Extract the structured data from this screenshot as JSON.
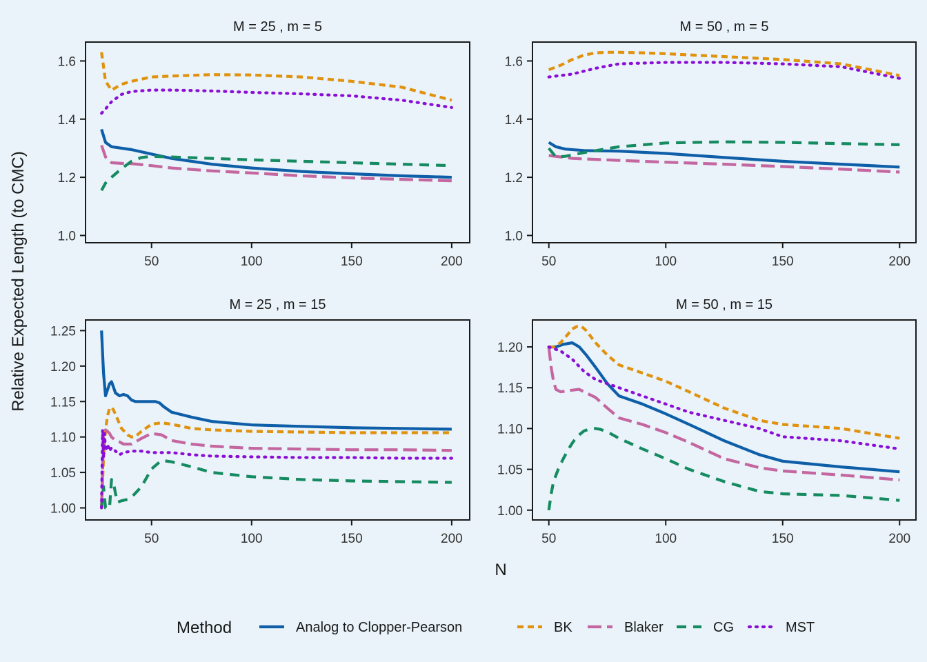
{
  "chart_data": {
    "type": "line",
    "ylabel": "Relative Expected Length (to CMC)",
    "xlabel": "N",
    "legend": {
      "title": "Method",
      "placement": "bottom",
      "entries": [
        {
          "name": "Analog to Clopper-Pearson",
          "color": "#0e5ea8",
          "dash": "solid"
        },
        {
          "name": "BK",
          "color": "#e0920f",
          "dash": "short-dash"
        },
        {
          "name": "Blaker",
          "color": "#c466a0",
          "dash": "long-dash"
        },
        {
          "name": "CG",
          "color": "#168a60",
          "dash": "dash"
        },
        {
          "name": "MST",
          "color": "#8a0ed6",
          "dash": "dotted"
        }
      ]
    },
    "panels": [
      {
        "title": "M = 25 , m = 5",
        "xlim": [
          17,
          209
        ],
        "ylim": [
          0.975,
          1.665
        ],
        "xticks": [
          50,
          100,
          150,
          200
        ],
        "yticks": [
          1.0,
          1.2,
          1.4,
          1.6
        ],
        "ytick_labels": [
          "1.0",
          "1.2",
          "1.4",
          "1.6"
        ],
        "series": [
          {
            "name": "Analog to Clopper-Pearson",
            "x": [
              25,
              27,
              30,
              40,
              50,
              60,
              80,
              100,
              125,
              150,
              175,
              200
            ],
            "y": [
              1.365,
              1.32,
              1.305,
              1.295,
              1.28,
              1.265,
              1.245,
              1.232,
              1.22,
              1.212,
              1.205,
              1.2
            ]
          },
          {
            "name": "BK",
            "x": [
              25,
              27,
              30,
              35,
              40,
              50,
              60,
              80,
              100,
              125,
              150,
              175,
              200
            ],
            "y": [
              1.63,
              1.53,
              1.5,
              1.52,
              1.53,
              1.545,
              1.548,
              1.553,
              1.552,
              1.545,
              1.53,
              1.51,
              1.465
            ]
          },
          {
            "name": "Blaker",
            "x": [
              25,
              27,
              30,
              35,
              40,
              50,
              60,
              80,
              100,
              125,
              150,
              175,
              200
            ],
            "y": [
              1.31,
              1.27,
              1.25,
              1.248,
              1.247,
              1.24,
              1.232,
              1.222,
              1.215,
              1.205,
              1.198,
              1.193,
              1.188
            ]
          },
          {
            "name": "CG",
            "x": [
              25,
              27,
              30,
              35,
              40,
              45,
              50,
              60,
              80,
              100,
              125,
              150,
              175,
              200
            ],
            "y": [
              1.155,
              1.18,
              1.2,
              1.23,
              1.255,
              1.268,
              1.272,
              1.27,
              1.265,
              1.26,
              1.255,
              1.25,
              1.245,
              1.24
            ]
          },
          {
            "name": "MST",
            "x": [
              25,
              27,
              30,
              35,
              40,
              50,
              60,
              80,
              100,
              125,
              150,
              175,
              200
            ],
            "y": [
              1.42,
              1.435,
              1.46,
              1.485,
              1.495,
              1.5,
              1.5,
              1.497,
              1.492,
              1.487,
              1.48,
              1.465,
              1.44
            ]
          }
        ]
      },
      {
        "title": "M = 50 , m = 5",
        "xlim": [
          43,
          207
        ],
        "ylim": [
          0.975,
          1.665
        ],
        "xticks": [
          50,
          100,
          150,
          200
        ],
        "yticks": [
          1.0,
          1.2,
          1.4,
          1.6
        ],
        "ytick_labels": [
          "1.0",
          "1.2",
          "1.4",
          "1.6"
        ],
        "series": [
          {
            "name": "Analog to Clopper-Pearson",
            "x": [
              50,
              53,
              57,
              65,
              80,
              100,
              125,
              150,
              175,
              200
            ],
            "y": [
              1.32,
              1.305,
              1.297,
              1.292,
              1.29,
              1.282,
              1.268,
              1.255,
              1.245,
              1.235
            ]
          },
          {
            "name": "BK",
            "x": [
              50,
              55,
              60,
              65,
              70,
              75,
              80,
              90,
              100,
              125,
              150,
              175,
              200
            ],
            "y": [
              1.57,
              1.585,
              1.605,
              1.62,
              1.628,
              1.63,
              1.63,
              1.628,
              1.625,
              1.615,
              1.605,
              1.59,
              1.55
            ]
          },
          {
            "name": "Blaker",
            "x": [
              50,
              60,
              80,
              100,
              125,
              150,
              175,
              200
            ],
            "y": [
              1.275,
              1.265,
              1.258,
              1.252,
              1.245,
              1.237,
              1.228,
              1.218
            ]
          },
          {
            "name": "CG",
            "x": [
              50,
              53,
              57,
              65,
              80,
              100,
              125,
              150,
              175,
              200
            ],
            "y": [
              1.3,
              1.27,
              1.272,
              1.285,
              1.305,
              1.318,
              1.322,
              1.32,
              1.316,
              1.312
            ]
          },
          {
            "name": "MST",
            "x": [
              50,
              55,
              60,
              70,
              80,
              100,
              125,
              150,
              175,
              200
            ],
            "y": [
              1.545,
              1.55,
              1.555,
              1.575,
              1.59,
              1.595,
              1.595,
              1.59,
              1.58,
              1.54
            ]
          }
        ]
      },
      {
        "title": "M = 25 , m = 15",
        "xlim": [
          17,
          209
        ],
        "ylim": [
          0.983,
          1.265
        ],
        "xticks": [
          50,
          100,
          150,
          200
        ],
        "yticks": [
          1.0,
          1.05,
          1.1,
          1.15,
          1.2,
          1.25
        ],
        "ytick_labels": [
          "1.00",
          "1.05",
          "1.10",
          "1.15",
          "1.20",
          "1.25"
        ],
        "series": [
          {
            "name": "Analog to Clopper-Pearson",
            "x": [
              25,
              26,
              27,
              29,
              30,
              32,
              34,
              36,
              38,
              40,
              42,
              44,
              46,
              48,
              52,
              54,
              56,
              60,
              70,
              80,
              100,
              125,
              150,
              175,
              200
            ],
            "y": [
              1.25,
              1.19,
              1.158,
              1.175,
              1.178,
              1.162,
              1.158,
              1.16,
              1.158,
              1.152,
              1.15,
              1.15,
              1.15,
              1.15,
              1.15,
              1.148,
              1.143,
              1.135,
              1.128,
              1.122,
              1.117,
              1.115,
              1.113,
              1.112,
              1.111
            ]
          },
          {
            "name": "BK",
            "x": [
              25,
              26,
              27,
              28,
              29,
              30,
              31,
              33,
              35,
              38,
              40,
              42,
              45,
              50,
              55,
              60,
              70,
              80,
              100,
              125,
              150,
              175,
              200
            ],
            "y": [
              1.0,
              1.07,
              1.11,
              1.13,
              1.14,
              1.142,
              1.138,
              1.125,
              1.112,
              1.103,
              1.1,
              1.101,
              1.108,
              1.118,
              1.12,
              1.118,
              1.112,
              1.11,
              1.108,
              1.107,
              1.106,
              1.106,
              1.106
            ]
          },
          {
            "name": "Blaker",
            "x": [
              25,
              26,
              27,
              28,
              29,
              30,
              32,
              34,
              36,
              40,
              45,
              50,
              55,
              60,
              70,
              80,
              100,
              125,
              150,
              175,
              200
            ],
            "y": [
              1.0,
              1.1,
              1.11,
              1.108,
              1.105,
              1.1,
              1.095,
              1.093,
              1.09,
              1.09,
              1.098,
              1.105,
              1.103,
              1.095,
              1.09,
              1.087,
              1.084,
              1.083,
              1.082,
              1.082,
              1.081
            ]
          },
          {
            "name": "CG",
            "x": [
              25,
              26,
              27,
              28,
              29,
              30,
              31,
              32,
              33,
              35,
              38,
              40,
              45,
              50,
              55,
              60,
              70,
              80,
              100,
              125,
              150,
              175,
              200
            ],
            "y": [
              1.0,
              1.03,
              1.0,
              1.0,
              1.0,
              1.04,
              1.035,
              1.02,
              1.008,
              1.01,
              1.012,
              1.015,
              1.03,
              1.055,
              1.067,
              1.065,
              1.058,
              1.05,
              1.044,
              1.04,
              1.038,
              1.037,
              1.036
            ]
          },
          {
            "name": "MST",
            "x": [
              25,
              25.5,
              26,
              26.5,
              27,
              28,
              29,
              30,
              32,
              34,
              36,
              40,
              45,
              50,
              60,
              70,
              80,
              100,
              125,
              150,
              175,
              200
            ],
            "y": [
              1.0,
              1.11,
              1.07,
              1.105,
              1.08,
              1.09,
              1.08,
              1.085,
              1.08,
              1.075,
              1.078,
              1.08,
              1.08,
              1.078,
              1.078,
              1.075,
              1.073,
              1.072,
              1.071,
              1.071,
              1.07,
              1.07
            ]
          }
        ]
      },
      {
        "title": "M = 50 , m = 15",
        "xlim": [
          43,
          207
        ],
        "ylim": [
          0.988,
          1.233
        ],
        "xticks": [
          50,
          100,
          150,
          200
        ],
        "yticks": [
          1.0,
          1.05,
          1.1,
          1.15,
          1.2
        ],
        "ytick_labels": [
          "1.00",
          "1.05",
          "1.10",
          "1.15",
          "1.20"
        ],
        "series": [
          {
            "name": "Analog to Clopper-Pearson",
            "x": [
              50,
              53,
              56,
              60,
              63,
              66,
              70,
              75,
              80,
              90,
              100,
              110,
              125,
              140,
              150,
              175,
              200
            ],
            "y": [
              1.2,
              1.2,
              1.203,
              1.205,
              1.2,
              1.19,
              1.175,
              1.155,
              1.14,
              1.13,
              1.118,
              1.105,
              1.085,
              1.068,
              1.06,
              1.053,
              1.047
            ]
          },
          {
            "name": "BK",
            "x": [
              50,
              52,
              55,
              58,
              60,
              62,
              64,
              66,
              70,
              75,
              80,
              90,
              100,
              110,
              125,
              140,
              150,
              175,
              200
            ],
            "y": [
              1.2,
              1.2,
              1.205,
              1.215,
              1.222,
              1.225,
              1.225,
              1.22,
              1.205,
              1.19,
              1.178,
              1.168,
              1.158,
              1.145,
              1.125,
              1.11,
              1.105,
              1.1,
              1.088
            ]
          },
          {
            "name": "Blaker",
            "x": [
              50,
              51,
              52,
              53,
              55,
              60,
              63,
              65,
              70,
              75,
              80,
              90,
              100,
              110,
              125,
              140,
              150,
              175,
              200
            ],
            "y": [
              1.2,
              1.175,
              1.158,
              1.148,
              1.145,
              1.147,
              1.148,
              1.145,
              1.138,
              1.125,
              1.113,
              1.105,
              1.095,
              1.083,
              1.063,
              1.052,
              1.048,
              1.043,
              1.037
            ]
          },
          {
            "name": "CG",
            "x": [
              50,
              51,
              52,
              54,
              56,
              58,
              60,
              62,
              65,
              68,
              70,
              72,
              75,
              80,
              90,
              100,
              110,
              125,
              140,
              150,
              175,
              200
            ],
            "y": [
              1.0,
              1.02,
              1.035,
              1.05,
              1.062,
              1.073,
              1.082,
              1.09,
              1.097,
              1.1,
              1.1,
              1.099,
              1.096,
              1.088,
              1.075,
              1.063,
              1.05,
              1.035,
              1.023,
              1.02,
              1.018,
              1.012
            ]
          },
          {
            "name": "MST",
            "x": [
              50,
              55,
              60,
              65,
              70,
              80,
              90,
              100,
              110,
              125,
              140,
              150,
              175,
              200
            ],
            "y": [
              1.2,
              1.195,
              1.185,
              1.17,
              1.16,
              1.15,
              1.14,
              1.13,
              1.12,
              1.11,
              1.1,
              1.09,
              1.085,
              1.075
            ]
          }
        ]
      }
    ]
  }
}
